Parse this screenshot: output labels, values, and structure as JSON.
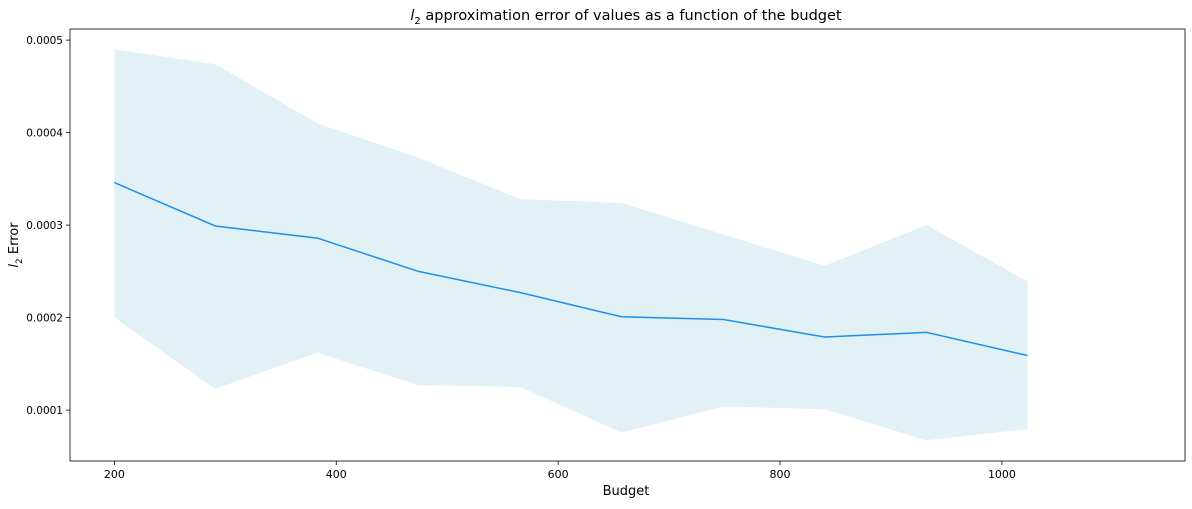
{
  "chart_data": {
    "type": "line",
    "title_prefix": "l",
    "title_sub": "2",
    "title_rest": " approximation error of values as a function of the budget",
    "xlabel": "Budget",
    "ylabel_prefix": "l",
    "ylabel_sub": "2",
    "ylabel_rest": " Error",
    "xlim": [
      160,
      1165
    ],
    "ylim": [
      4.5e-05,
      0.000512
    ],
    "xticks": [
      200,
      400,
      600,
      800,
      1000
    ],
    "xtick_labels": [
      "200",
      "400",
      "600",
      "800",
      "1000"
    ],
    "yticks": [
      0.0001,
      0.0002,
      0.0003,
      0.0004,
      0.0005
    ],
    "ytick_labels": [
      "0.0001",
      "0.0002",
      "0.0003",
      "0.0004",
      "0.0005"
    ],
    "grid": false,
    "series": [
      {
        "x": [
          200,
          291,
          383,
          474,
          566,
          657,
          749,
          840,
          932,
          1023
        ],
        "y": [
          0.000346,
          0.000299,
          0.000286,
          0.00025,
          0.000227,
          0.000201,
          0.000198,
          0.000179,
          0.000184,
          0.000159
        ],
        "lower": [
          0.0002,
          0.000123,
          0.000162,
          0.000127,
          0.000125,
          7.57e-05,
          0.000104,
          0.000101,
          6.75e-05,
          7.95e-05
        ],
        "upper": [
          0.00049,
          0.000474,
          0.00041,
          0.000373,
          0.000328,
          0.000324,
          0.00029,
          0.000256,
          0.0003,
          0.000239
        ],
        "line_color": "#1f8fe8",
        "band_color": "#add8e6"
      }
    ]
  }
}
